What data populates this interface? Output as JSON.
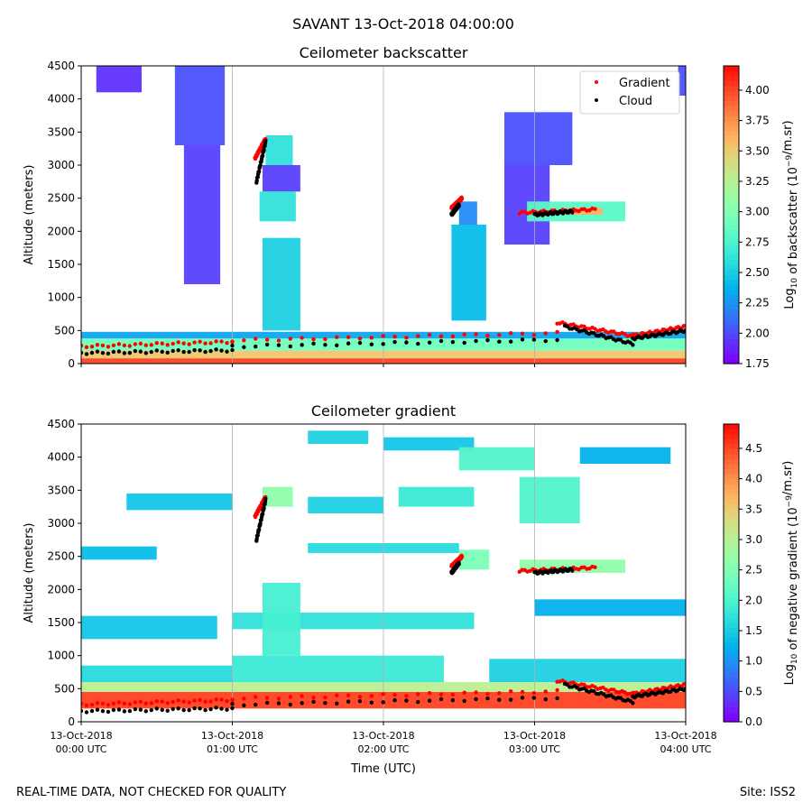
{
  "figure": {
    "suptitle": "SAVANT 13-Oct-2018 04:00:00",
    "footer_left": "REAL-TIME DATA, NOT CHECKED FOR QUALITY",
    "footer_right": "Site: ISS2"
  },
  "chart_data": [
    {
      "type": "heatmap",
      "title": "Ceilometer backscatter",
      "xlabel": "",
      "ylabel": "Altitude (meters)",
      "x_ticks": [
        "13-Oct-2018\n00:00 UTC",
        "13-Oct-2018\n01:00 UTC",
        "13-Oct-2018\n02:00 UTC",
        "13-Oct-2018\n03:00 UTC",
        "13-Oct-2018\n04:00 UTC"
      ],
      "x_range_hours": [
        0,
        4
      ],
      "y_ticks": [
        0,
        500,
        1000,
        1500,
        2000,
        2500,
        3000,
        3500,
        4000,
        4500
      ],
      "ylim": [
        0,
        4500
      ],
      "colorbar": {
        "label": "Log10 of backscatter (10^-9/m.sr)",
        "label_main": "Log",
        "label_sub": "10",
        "label_rest": " of backscatter (10",
        "label_sup": "−9",
        "label_end": "/m.sr)",
        "range": [
          1.75,
          4.2
        ],
        "ticks": [
          "1.75",
          "2.00",
          "2.25",
          "2.50",
          "2.75",
          "3.00",
          "3.25",
          "3.50",
          "3.75",
          "4.00"
        ],
        "colormap": "rainbow"
      },
      "legend": {
        "placement": "top-right",
        "entries": [
          {
            "label": "Gradient",
            "color": "#ff0000"
          },
          {
            "label": "Cloud",
            "color": "#000000"
          }
        ]
      },
      "grid": "vertical",
      "fields": [
        {
          "x": [
            0,
            4
          ],
          "y": [
            0,
            80
          ],
          "v": 4.0
        },
        {
          "x": [
            0,
            4
          ],
          "y": [
            80,
            200
          ],
          "v": 3.5
        },
        {
          "x": [
            0,
            4
          ],
          "y": [
            200,
            380
          ],
          "v": 2.9
        },
        {
          "x": [
            0,
            4
          ],
          "y": [
            380,
            480
          ],
          "v": 2.3
        },
        {
          "x": [
            0.1,
            0.4
          ],
          "y": [
            4100,
            4500
          ],
          "v": 1.9
        },
        {
          "x": [
            0.62,
            0.95
          ],
          "y": [
            3300,
            4500
          ],
          "v": 2.0
        },
        {
          "x": [
            0.68,
            0.92
          ],
          "y": [
            1200,
            3300
          ],
          "v": 1.95
        },
        {
          "x": [
            1.2,
            1.45
          ],
          "y": [
            500,
            1900
          ],
          "v": 2.5
        },
        {
          "x": [
            1.22,
            1.4
          ],
          "y": [
            3000,
            3450
          ],
          "v": 2.6
        },
        {
          "x": [
            1.2,
            1.45
          ],
          "y": [
            2600,
            3000
          ],
          "v": 1.95
        },
        {
          "x": [
            1.18,
            1.42
          ],
          "y": [
            2150,
            2600
          ],
          "v": 2.6
        },
        {
          "x": [
            2.45,
            2.68
          ],
          "y": [
            650,
            2100
          ],
          "v": 2.4
        },
        {
          "x": [
            2.5,
            2.62
          ],
          "y": [
            2100,
            2450
          ],
          "v": 2.2
        },
        {
          "x": [
            2.8,
            3.25
          ],
          "y": [
            3000,
            3800
          ],
          "v": 2.0
        },
        {
          "x": [
            2.8,
            3.1
          ],
          "y": [
            1800,
            3000
          ],
          "v": 1.95
        },
        {
          "x": [
            2.95,
            3.6
          ],
          "y": [
            2150,
            2450
          ],
          "v": 2.8
        },
        {
          "x": [
            3.2,
            3.45
          ],
          "y": [
            2250,
            2350
          ],
          "v": 3.6
        },
        {
          "x": [
            3.95,
            4.0
          ],
          "y": [
            4050,
            4500
          ],
          "v": 2.0
        }
      ],
      "gradient_points": [
        {
          "x": [
            0,
            1.0
          ],
          "y": [
            260,
            330
          ]
        },
        {
          "x": [
            1.0,
            3.15
          ],
          "y": [
            350,
            460
          ]
        },
        {
          "x": [
            3.15,
            3.65
          ],
          "y": [
            620,
            420
          ]
        },
        {
          "x": [
            3.65,
            4.0
          ],
          "y": [
            420,
            560
          ]
        },
        {
          "x": [
            1.15,
            1.22
          ],
          "y": [
            3100,
            3400
          ]
        },
        {
          "x": [
            2.45,
            2.52
          ],
          "y": [
            2350,
            2500
          ]
        },
        {
          "x": [
            2.9,
            3.4
          ],
          "y": [
            2280,
            2330
          ]
        }
      ],
      "cloud_points": [
        {
          "x": [
            0,
            1.0
          ],
          "y": [
            160,
            200
          ]
        },
        {
          "x": [
            1.0,
            3.15
          ],
          "y": [
            260,
            360
          ]
        },
        {
          "x": [
            3.2,
            3.65
          ],
          "y": [
            560,
            300
          ]
        },
        {
          "x": [
            3.65,
            4.0
          ],
          "y": [
            380,
            500
          ]
        },
        {
          "x": [
            1.16,
            1.22
          ],
          "y": [
            2750,
            3350
          ]
        },
        {
          "x": [
            2.45,
            2.5
          ],
          "y": [
            2250,
            2400
          ]
        },
        {
          "x": [
            3.0,
            3.25
          ],
          "y": [
            2250,
            2300
          ]
        }
      ]
    },
    {
      "type": "heatmap",
      "title": "Ceilometer gradient",
      "xlabel": "Time (UTC)",
      "ylabel": "Altitude (meters)",
      "x_ticks": [
        "13-Oct-2018\n00:00 UTC",
        "13-Oct-2018\n01:00 UTC",
        "13-Oct-2018\n02:00 UTC",
        "13-Oct-2018\n03:00 UTC",
        "13-Oct-2018\n04:00 UTC"
      ],
      "x_range_hours": [
        0,
        4
      ],
      "y_ticks": [
        0,
        500,
        1000,
        1500,
        2000,
        2500,
        3000,
        3500,
        4000,
        4500
      ],
      "ylim": [
        0,
        4500
      ],
      "colorbar": {
        "label": "Log10 of negative gradient (10^-9/m.sr)",
        "label_main": "Log",
        "label_sub": "10",
        "label_rest": " of negative gradient (10",
        "label_sup": "−9",
        "label_end": "/m.sr)",
        "range": [
          0.0,
          4.9
        ],
        "ticks": [
          "0.0",
          "0.5",
          "1.0",
          "1.5",
          "2.0",
          "2.5",
          "3.0",
          "3.5",
          "4.0",
          "4.5"
        ],
        "colormap": "rainbow"
      },
      "grid": "vertical",
      "fields": [
        {
          "x": [
            0,
            4
          ],
          "y": [
            200,
            450
          ],
          "v": 4.5
        },
        {
          "x": [
            0,
            4
          ],
          "y": [
            450,
            600
          ],
          "v": 3.0
        },
        {
          "x": [
            0,
            1.0
          ],
          "y": [
            600,
            850
          ],
          "v": 1.6
        },
        {
          "x": [
            1.0,
            2.4
          ],
          "y": [
            600,
            1000
          ],
          "v": 1.8
        },
        {
          "x": [
            2.7,
            4.0
          ],
          "y": [
            600,
            950
          ],
          "v": 1.5
        },
        {
          "x": [
            0,
            0.9
          ],
          "y": [
            1250,
            1600
          ],
          "v": 1.4
        },
        {
          "x": [
            1.0,
            2.6
          ],
          "y": [
            1400,
            1650
          ],
          "v": 1.7
        },
        {
          "x": [
            3.0,
            4.0
          ],
          "y": [
            1600,
            1850
          ],
          "v": 1.2
        },
        {
          "x": [
            1.2,
            1.45
          ],
          "y": [
            1000,
            2100
          ],
          "v": 1.9
        },
        {
          "x": [
            0.3,
            1.0
          ],
          "y": [
            3200,
            3450
          ],
          "v": 1.4
        },
        {
          "x": [
            1.2,
            1.4
          ],
          "y": [
            3250,
            3550
          ],
          "v": 2.6
        },
        {
          "x": [
            1.5,
            2.0
          ],
          "y": [
            3150,
            3400
          ],
          "v": 1.5
        },
        {
          "x": [
            2.1,
            2.6
          ],
          "y": [
            3250,
            3550
          ],
          "v": 1.8
        },
        {
          "x": [
            2.9,
            3.3
          ],
          "y": [
            3000,
            3700
          ],
          "v": 2.0
        },
        {
          "x": [
            0.0,
            0.5
          ],
          "y": [
            2450,
            2650
          ],
          "v": 1.3
        },
        {
          "x": [
            1.5,
            2.5
          ],
          "y": [
            2550,
            2700
          ],
          "v": 1.6
        },
        {
          "x": [
            2.5,
            2.7
          ],
          "y": [
            2300,
            2600
          ],
          "v": 2.4
        },
        {
          "x": [
            2.9,
            3.6
          ],
          "y": [
            2250,
            2450
          ],
          "v": 2.6
        },
        {
          "x": [
            2.0,
            2.6
          ],
          "y": [
            4100,
            4300
          ],
          "v": 1.4
        },
        {
          "x": [
            2.5,
            3.0
          ],
          "y": [
            3800,
            4150
          ],
          "v": 2.0
        },
        {
          "x": [
            3.3,
            3.9
          ],
          "y": [
            3900,
            4150
          ],
          "v": 1.2
        },
        {
          "x": [
            1.5,
            1.9
          ],
          "y": [
            4200,
            4400
          ],
          "v": 1.5
        }
      ],
      "gradient_points": [
        {
          "x": [
            0,
            1.0
          ],
          "y": [
            260,
            330
          ]
        },
        {
          "x": [
            1.0,
            3.15
          ],
          "y": [
            350,
            460
          ]
        },
        {
          "x": [
            3.15,
            3.65
          ],
          "y": [
            620,
            420
          ]
        },
        {
          "x": [
            3.65,
            4.0
          ],
          "y": [
            420,
            560
          ]
        },
        {
          "x": [
            1.15,
            1.22
          ],
          "y": [
            3100,
            3400
          ]
        },
        {
          "x": [
            2.45,
            2.52
          ],
          "y": [
            2350,
            2500
          ]
        },
        {
          "x": [
            2.9,
            3.4
          ],
          "y": [
            2280,
            2330
          ]
        }
      ],
      "cloud_points": [
        {
          "x": [
            0,
            1.0
          ],
          "y": [
            160,
            200
          ]
        },
        {
          "x": [
            1.0,
            3.15
          ],
          "y": [
            260,
            360
          ]
        },
        {
          "x": [
            3.2,
            3.65
          ],
          "y": [
            560,
            300
          ]
        },
        {
          "x": [
            3.65,
            4.0
          ],
          "y": [
            380,
            500
          ]
        },
        {
          "x": [
            1.16,
            1.22
          ],
          "y": [
            2750,
            3350
          ]
        },
        {
          "x": [
            2.45,
            2.5
          ],
          "y": [
            2250,
            2400
          ]
        },
        {
          "x": [
            3.0,
            3.25
          ],
          "y": [
            2250,
            2300
          ]
        }
      ]
    }
  ]
}
